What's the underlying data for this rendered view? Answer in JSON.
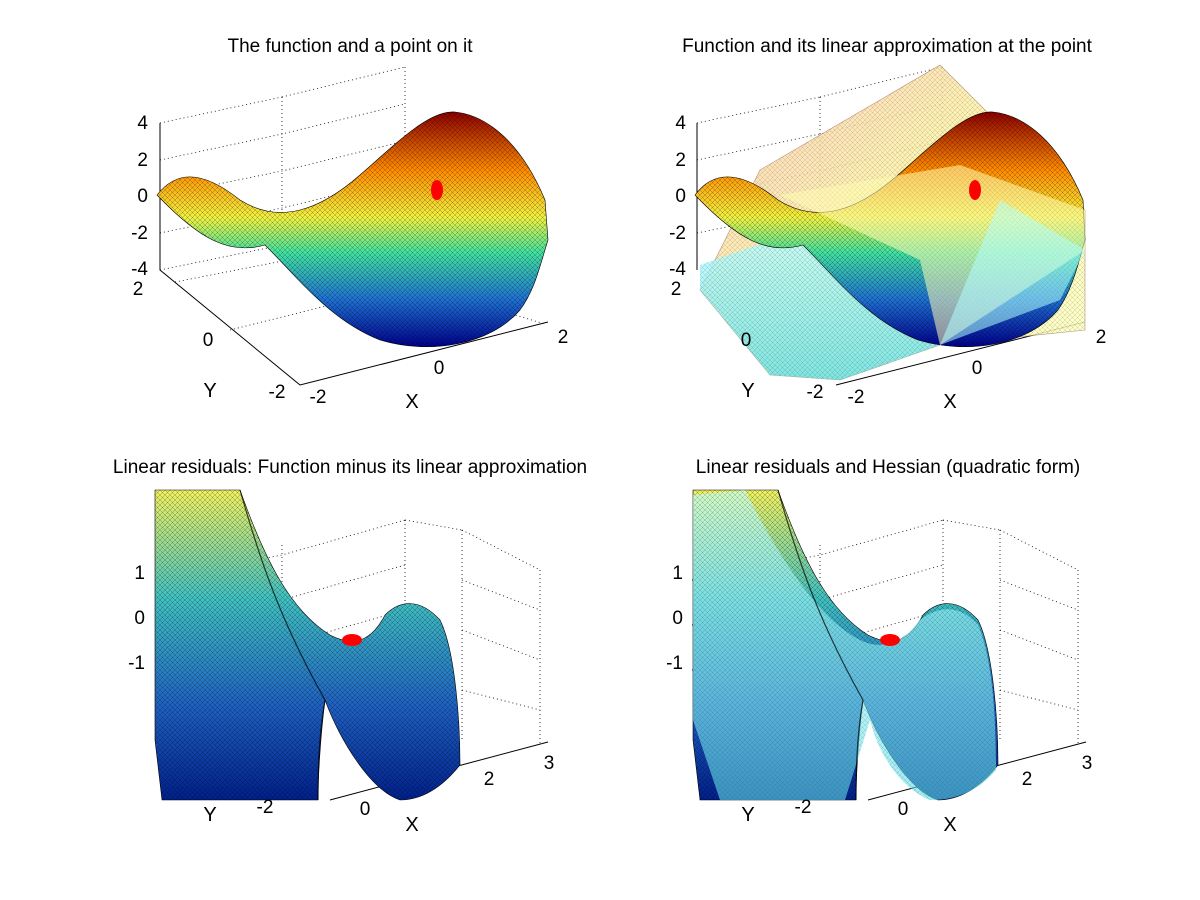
{
  "figure": {
    "background": "#ffffff",
    "colormap": "jet"
  },
  "chart_data": [
    {
      "type": "surface3d",
      "title": "The function and a point on it",
      "xlabel": "X",
      "ylabel": "Y",
      "zlabel": "",
      "xlim": [
        -2,
        2
      ],
      "ylim": [
        -2,
        2
      ],
      "zlim": [
        -4,
        4
      ],
      "xticks": [
        "-2",
        "0",
        "2"
      ],
      "yticks": [
        "-2",
        "0",
        "2"
      ],
      "zticks": [
        "-4",
        "-2",
        "0",
        "2",
        "4"
      ],
      "grid": true,
      "surfaces": [
        {
          "function": "x^2 - y^2",
          "colormap": "jet"
        }
      ],
      "point": {
        "x": 1,
        "y": 1,
        "z": 0,
        "color": "#ff0000"
      }
    },
    {
      "type": "surface3d",
      "title": "Function and its linear approximation at the point",
      "xlabel": "X",
      "ylabel": "Y",
      "zlabel": "",
      "xlim": [
        -2,
        2
      ],
      "ylim": [
        -2,
        2
      ],
      "zlim": [
        -4,
        4
      ],
      "xticks": [
        "-2",
        "0",
        "2"
      ],
      "yticks": [
        "-2",
        "0",
        "2"
      ],
      "zticks": [
        "-4",
        "-2",
        "0",
        "2",
        "4"
      ],
      "grid": true,
      "surfaces": [
        {
          "function": "x^2 - y^2",
          "colormap": "jet"
        },
        {
          "function": "2(x-1) - 2(y-1)",
          "colormap": "hot",
          "alpha": 0.55
        }
      ],
      "point": {
        "x": 1,
        "y": 1,
        "z": 0,
        "color": "#ff0000"
      }
    },
    {
      "type": "surface3d",
      "title": "Linear residuals: Function minus its linear approximation",
      "xlabel": "X",
      "ylabel": "Y",
      "zlabel": "",
      "xlim": [
        -2,
        3
      ],
      "ylim": [
        -2,
        2
      ],
      "zlim": [
        -2,
        2
      ],
      "xticks": [
        "0",
        "2",
        "3"
      ],
      "yticks": [
        "-2"
      ],
      "zticks": [
        "-1",
        "0",
        "1"
      ],
      "grid": true,
      "surfaces": [
        {
          "function": "(x-1)^2 - (y-1)^2",
          "colormap": "jet"
        }
      ],
      "point": {
        "x": 1,
        "y": 1,
        "z": 0,
        "color": "#ff0000"
      }
    },
    {
      "type": "surface3d",
      "title": "Linear residuals and Hessian (quadratic form)",
      "xlabel": "X",
      "ylabel": "Y",
      "zlabel": "",
      "xlim": [
        -2,
        3
      ],
      "ylim": [
        -2,
        2
      ],
      "zlim": [
        -2,
        2
      ],
      "xticks": [
        "0",
        "2",
        "3"
      ],
      "yticks": [
        "-2"
      ],
      "zticks": [
        "-1",
        "0",
        "1"
      ],
      "grid": true,
      "surfaces": [
        {
          "function": "(x-1)^2 - (y-1)^2",
          "colormap": "jet"
        },
        {
          "function": "hessian quadratic form",
          "colormap": "cool",
          "alpha": 0.6
        }
      ],
      "point": {
        "x": 1,
        "y": 1,
        "z": 0,
        "color": "#ff0000"
      }
    }
  ]
}
